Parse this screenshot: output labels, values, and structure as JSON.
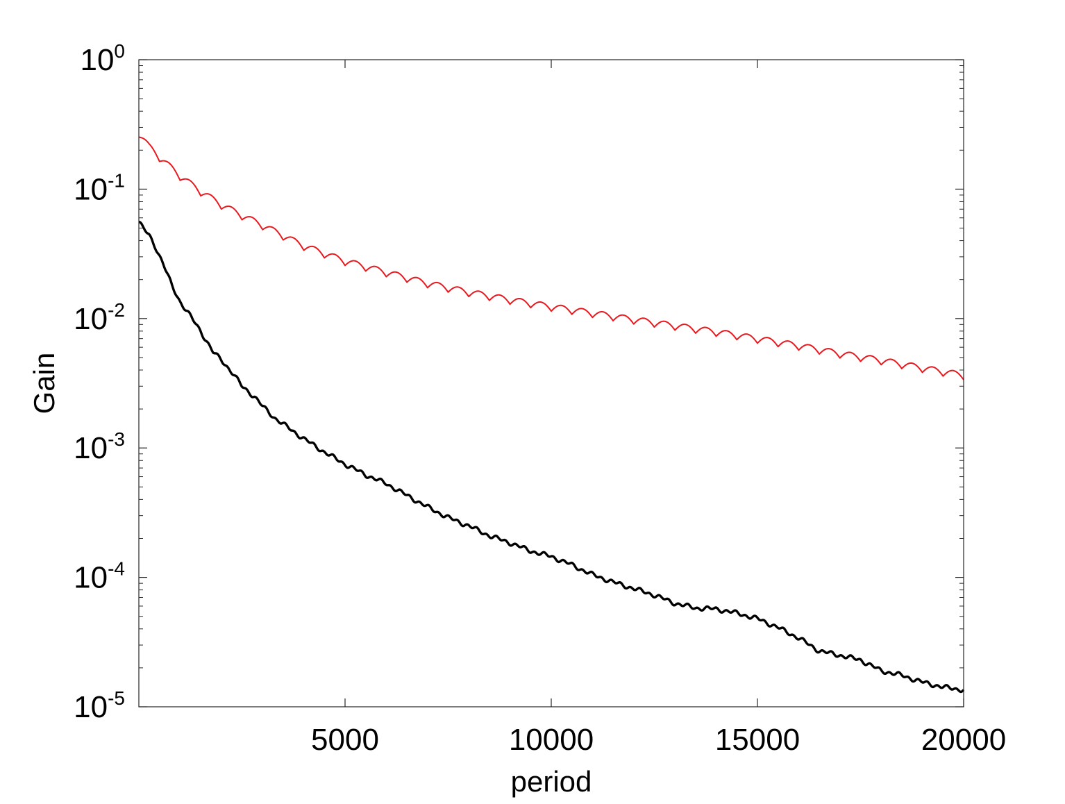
{
  "chart_data": {
    "type": "line",
    "title": "",
    "xlabel": "period",
    "ylabel": "Gain",
    "xlim": [
      0,
      20000
    ],
    "ylim": [
      1e-05,
      1
    ],
    "yscale": "log",
    "grid": false,
    "legend": "none",
    "xticks": [
      {
        "value": 5000,
        "label": "5000"
      },
      {
        "value": 10000,
        "label": "10000"
      },
      {
        "value": 15000,
        "label": "15000"
      },
      {
        "value": 20000,
        "label": "20000"
      }
    ],
    "yticks": [
      {
        "value": 1,
        "base": "10",
        "exp": "0"
      },
      {
        "value": 0.1,
        "base": "10",
        "exp": "-1"
      },
      {
        "value": 0.01,
        "base": "10",
        "exp": "-2"
      },
      {
        "value": 0.001,
        "base": "10",
        "exp": "-3"
      },
      {
        "value": 0.0001,
        "base": "10",
        "exp": "-4"
      },
      {
        "value": 1e-05,
        "base": "10",
        "exp": "-5"
      }
    ],
    "series": [
      {
        "color": "#e8191e",
        "ripple": true,
        "x": [
          0,
          250,
          500,
          1000,
          1500,
          2000,
          2500,
          3000,
          4000,
          5000,
          6000,
          7000,
          8000,
          9000,
          10000,
          11000,
          12000,
          13000,
          14000,
          15000,
          16000,
          17000,
          18000,
          19000,
          20000
        ],
        "y": [
          0.27,
          0.21,
          0.175,
          0.125,
          0.095,
          0.075,
          0.062,
          0.052,
          0.036,
          0.0275,
          0.0225,
          0.0185,
          0.0158,
          0.0138,
          0.0122,
          0.0109,
          0.0097,
          0.0087,
          0.0078,
          0.0069,
          0.0061,
          0.0053,
          0.0047,
          0.0041,
          0.0036
        ]
      },
      {
        "color": "#000000",
        "ripple": false,
        "x": [
          0,
          100,
          250,
          400,
          600,
          800,
          1000,
          1200,
          1500,
          1800,
          2000,
          2300,
          2500,
          2800,
          3000,
          3300,
          3600,
          4000,
          4500,
          5000,
          5500,
          6000,
          6500,
          7000,
          7500,
          8000,
          8500,
          9000,
          9500,
          10000,
          10500,
          11000,
          11500,
          12000,
          12500,
          13000,
          13500,
          14000,
          14500,
          15000,
          15500,
          16000,
          16500,
          17000,
          17500,
          18000,
          18500,
          19000,
          19500,
          20000
        ],
        "y": [
          0.056,
          0.05,
          0.044,
          0.036,
          0.026,
          0.018,
          0.0135,
          0.011,
          0.008,
          0.0055,
          0.0048,
          0.0037,
          0.003,
          0.0025,
          0.0021,
          0.0017,
          0.00145,
          0.00118,
          0.00093,
          0.00075,
          0.00062,
          0.00053,
          0.00043,
          0.00035,
          0.00029,
          0.00025,
          0.00021,
          0.000185,
          0.00016,
          0.000145,
          0.000125,
          0.000105,
          9.2e-05,
          8.2e-05,
          7.3e-05,
          6.3e-05,
          5.8e-05,
          5.7e-05,
          5.3e-05,
          4.8e-05,
          4.1e-05,
          3.4e-05,
          2.7e-05,
          2.5e-05,
          2.3e-05,
          1.9e-05,
          1.75e-05,
          1.55e-05,
          1.42e-05,
          1.35e-05
        ]
      }
    ]
  }
}
